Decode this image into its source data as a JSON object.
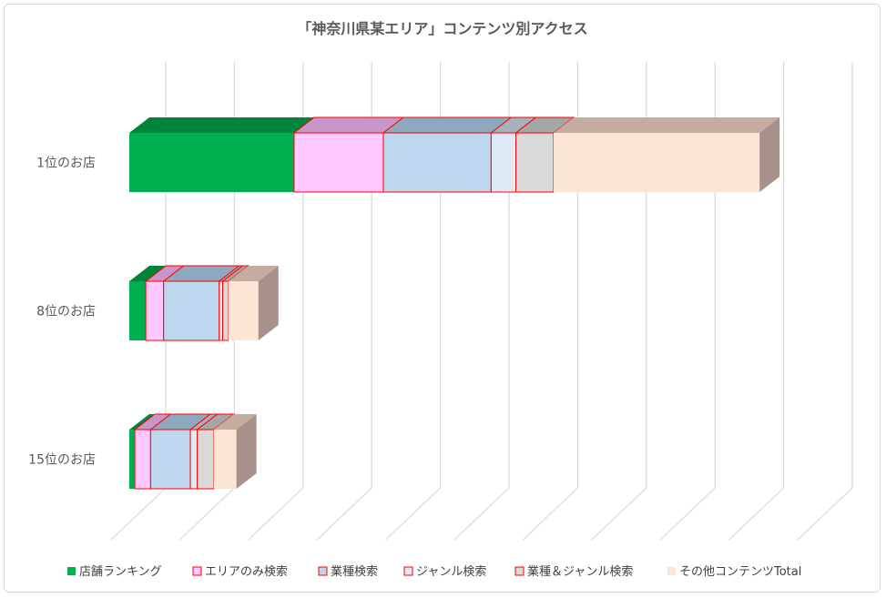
{
  "chart_data": {
    "type": "bar",
    "orientation": "horizontal",
    "stacked": true,
    "three_d": true,
    "title": "「神奈川県某エリア」コンテンツ別アクセス",
    "xlabel": "",
    "ylabel": "",
    "categories": [
      "1位のお店",
      "8位のお店",
      "15位のお店"
    ],
    "xlim": [
      0,
      11
    ],
    "gridlines": true,
    "legend_position": "bottom",
    "series": [
      {
        "name": "店舗ランキング",
        "values": [
          2.4,
          0.24,
          0.08
        ],
        "color": "#00b050",
        "top_color": "#00843c",
        "stroke": ""
      },
      {
        "name": "エリアのみ検索",
        "values": [
          1.3,
          0.26,
          0.23
        ],
        "color": "#ffc9ff",
        "top_color": "#c896c8",
        "stroke": "#ff0000"
      },
      {
        "name": "業種検索",
        "values": [
          1.57,
          0.81,
          0.58
        ],
        "color": "#bdd7ee",
        "top_color": "#8ea9bf",
        "stroke": "#ff0000"
      },
      {
        "name": "ジャンル検索",
        "values": [
          0.36,
          0.05,
          0.1
        ],
        "color": "#deebf7",
        "top_color": "#a6b1bb",
        "stroke": "#ff0000"
      },
      {
        "name": "業種＆ジャンル検索",
        "values": [
          0.55,
          0.08,
          0.24
        ],
        "color": "#d9d9d9",
        "top_color": "#a6a6a6",
        "stroke": "#ff0000"
      },
      {
        "name": "その他コンテンツTotal",
        "values": [
          3.0,
          0.44,
          0.33
        ],
        "color": "#fde5d6",
        "top_color": "#c4aca0",
        "stroke": ""
      }
    ]
  }
}
